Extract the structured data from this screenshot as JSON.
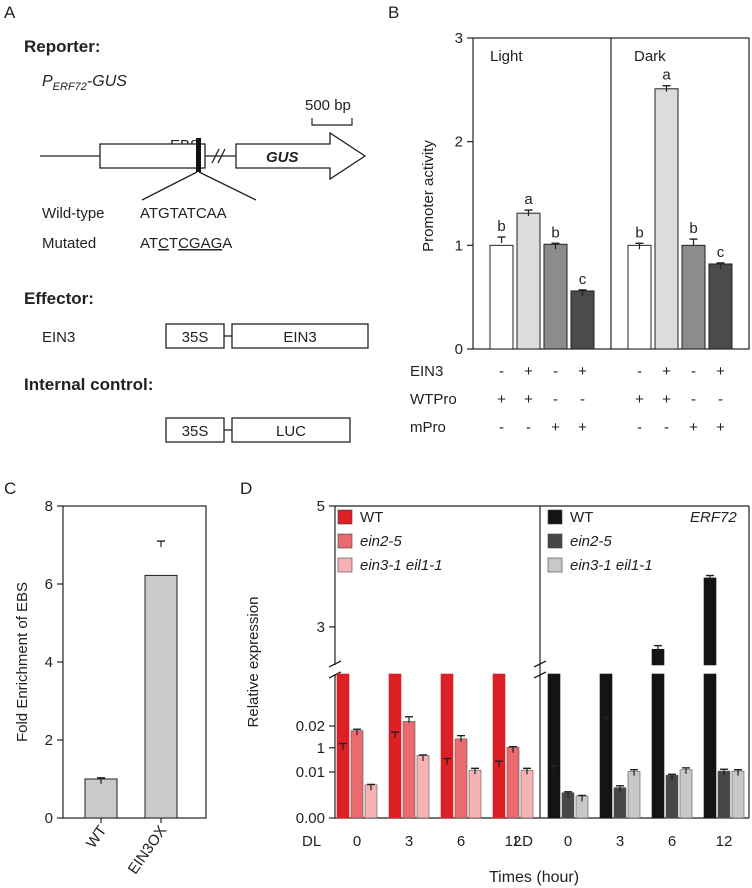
{
  "panelA": {
    "letter": "A",
    "reporter_title": "Reporter:",
    "construct_P": "P",
    "construct_sub": "ERF72",
    "construct_suffix": "-GUS",
    "ebs_label": "EBS",
    "scale_label": "500 bp",
    "gus_label": "GUS",
    "wt_label": "Wild-type",
    "wt_seq": "ATGTATCAA",
    "mut_label": "Mutated",
    "mut_seq": [
      "AT",
      "C",
      "T",
      "CGAG",
      "A"
    ],
    "effector_title": "Effector:",
    "effector_name": "EIN3",
    "effector_promoter": "35S",
    "effector_gene": "EIN3",
    "control_title": "Internal control:",
    "control_promoter": "35S",
    "control_gene": "LUC"
  },
  "chart_data": [
    {
      "panel": "B",
      "type": "bar",
      "ylabel": "Promoter activity",
      "ylim": [
        0,
        3
      ],
      "yticks": [
        "0",
        "1",
        "2",
        "3"
      ],
      "groups": [
        {
          "name": "Light",
          "values": [
            1.0,
            1.31,
            1.01,
            0.56
          ],
          "errors": [
            0.08,
            0.03,
            0.01,
            0.01
          ],
          "letters": [
            "b",
            "a",
            "b",
            "c"
          ]
        },
        {
          "name": "Dark",
          "values": [
            1.0,
            2.51,
            1.0,
            0.82
          ],
          "errors": [
            0.02,
            0.03,
            0.06,
            0.01
          ],
          "letters": [
            "b",
            "a",
            "b",
            "c"
          ]
        }
      ],
      "bar_colors": [
        "#ffffff",
        "#dcdcdc",
        "#8c8c8c",
        "#4b4b4b"
      ],
      "rows": [
        {
          "label": "EIN3",
          "signs": [
            "-",
            "+",
            "-",
            "+"
          ]
        },
        {
          "label": "WTPro",
          "signs": [
            "+",
            "+",
            "-",
            "-"
          ]
        },
        {
          "label": "mPro",
          "signs": [
            "-",
            "-",
            "+",
            "+"
          ]
        }
      ]
    },
    {
      "panel": "C",
      "type": "bar",
      "ylabel": "Fold Enrichment of EBS",
      "ylim": [
        0,
        8
      ],
      "yticks": [
        "0",
        "2",
        "4",
        "6",
        "8"
      ],
      "categories": [
        "WT",
        "EIN3OX"
      ],
      "values": [
        1.0,
        6.22
      ],
      "errors": [
        0.03,
        0.88
      ],
      "color": "#cbcbcb"
    },
    {
      "panel": "D",
      "type": "bar",
      "ylabel": "Relative expression",
      "xlabel": "Times (hour)",
      "gene_label": "ERF72",
      "x": [
        "0",
        "3",
        "6",
        "12"
      ],
      "lower_ylim": [
        0,
        0.03
      ],
      "lower_yticks": [
        "0.00",
        "0.01",
        "0.02"
      ],
      "upper_ylim": [
        0.5,
        5
      ],
      "upper_yticks": [
        "1",
        "3",
        "5"
      ],
      "groups": [
        {
          "name": "DL",
          "series": [
            {
              "name": "WT",
              "color": "#dd1f26",
              "values": [
                1.02,
                1.22,
                0.79,
                0.76
              ],
              "errors": [
                0.05,
                0.04,
                0.03,
                0.02
              ]
            },
            {
              "name": "ein2-5",
              "color": "#ea6a6f",
              "values": [
                0.019,
                0.021,
                0.0172,
                0.0154
              ],
              "errors": [
                0.0003,
                0.001,
                0.0007,
                0.0001
              ]
            },
            {
              "name": "ein3-1 eil1-1",
              "color": "#f5b3b6",
              "values": [
                0.0072,
                0.0136,
                0.0104,
                0.0104
              ],
              "errors": [
                0.0001,
                0.0001,
                0.0004,
                0.0004
              ]
            }
          ]
        },
        {
          "name": "LD",
          "series": [
            {
              "name": "WT",
              "color": "#141414",
              "values": [
                0.68,
                1.47,
                2.63,
                3.81
              ],
              "errors": [
                0.02,
                0.03,
                0.06,
                0.04
              ]
            },
            {
              "name": "ein2-5",
              "color": "#474747",
              "values": [
                0.0055,
                0.0066,
                0.0093,
                0.0102
              ],
              "errors": [
                0.0002,
                0.0004,
                0.0002,
                0.0004
              ]
            },
            {
              "name": "ein3-1 eil1-1",
              "color": "#c8c8c8",
              "values": [
                0.0048,
                0.0101,
                0.0105,
                0.0102
              ],
              "errors": [
                0.0001,
                0.0004,
                0.0004,
                0.0003
              ]
            }
          ]
        }
      ]
    }
  ]
}
